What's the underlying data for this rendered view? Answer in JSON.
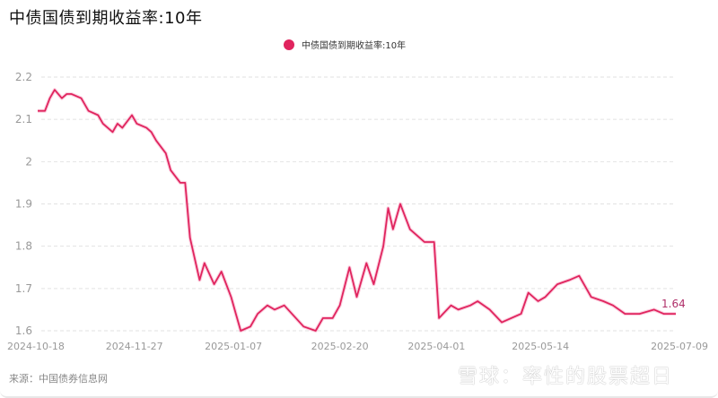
{
  "title": "中债国债到期收益率:10年",
  "legend": {
    "label": "中债国债到期收益率:10年",
    "color": "#e0245e"
  },
  "source": "来源：中国债券信息网",
  "watermark": "雪球：率性的股票超日",
  "last_value_label": "1.64",
  "chart_data": {
    "type": "line",
    "title": "中债国债到期收益率:10年",
    "xlabel": "",
    "ylabel": "",
    "ylim": [
      1.6,
      2.2
    ],
    "yticks": [
      "1.6",
      "1.7",
      "1.8",
      "1.9",
      "2",
      "2.1",
      "2.2"
    ],
    "xticks": [
      "2024-10-18",
      "2024-11-27",
      "2025-01-07",
      "2025-02-20",
      "2025-04-01",
      "2025-05-14",
      "2025-07-09"
    ],
    "grid": "horizontal dashed",
    "legend_position": "top-center",
    "series": [
      {
        "name": "中债国债到期收益率:10年",
        "color": "#e0245e",
        "x": [
          "2024-10-18",
          "2024-10-21",
          "2024-10-23",
          "2024-10-25",
          "2024-10-28",
          "2024-10-30",
          "2024-11-01",
          "2024-11-05",
          "2024-11-08",
          "2024-11-12",
          "2024-11-14",
          "2024-11-18",
          "2024-11-20",
          "2024-11-22",
          "2024-11-26",
          "2024-11-28",
          "2024-12-02",
          "2024-12-04",
          "2024-12-06",
          "2024-12-10",
          "2024-12-12",
          "2024-12-16",
          "2024-12-18",
          "2024-12-20",
          "2024-12-24",
          "2024-12-26",
          "2024-12-30",
          "2025-01-02",
          "2025-01-06",
          "2025-01-08",
          "2025-01-10",
          "2025-01-14",
          "2025-01-17",
          "2025-01-21",
          "2025-01-24",
          "2025-01-28",
          "2025-02-05",
          "2025-02-10",
          "2025-02-13",
          "2025-02-17",
          "2025-02-20",
          "2025-02-24",
          "2025-02-27",
          "2025-03-03",
          "2025-03-06",
          "2025-03-10",
          "2025-03-12",
          "2025-03-14",
          "2025-03-17",
          "2025-03-19",
          "2025-03-21",
          "2025-03-25",
          "2025-03-27",
          "2025-03-31",
          "2025-04-02",
          "2025-04-07",
          "2025-04-10",
          "2025-04-15",
          "2025-04-18",
          "2025-04-23",
          "2025-04-28",
          "2025-05-06",
          "2025-05-09",
          "2025-05-13",
          "2025-05-16",
          "2025-05-21",
          "2025-05-26",
          "2025-05-30",
          "2025-06-04",
          "2025-06-09",
          "2025-06-13",
          "2025-06-18",
          "2025-06-24",
          "2025-06-30",
          "2025-07-04",
          "2025-07-09"
        ],
        "values": [
          2.12,
          2.12,
          2.15,
          2.17,
          2.15,
          2.16,
          2.16,
          2.15,
          2.12,
          2.11,
          2.09,
          2.07,
          2.09,
          2.08,
          2.11,
          2.09,
          2.08,
          2.07,
          2.05,
          2.02,
          1.98,
          1.95,
          1.95,
          1.82,
          1.72,
          1.76,
          1.71,
          1.74,
          1.68,
          1.64,
          1.6,
          1.61,
          1.64,
          1.66,
          1.65,
          1.66,
          1.61,
          1.6,
          1.63,
          1.63,
          1.66,
          1.75,
          1.68,
          1.76,
          1.71,
          1.8,
          1.89,
          1.84,
          1.9,
          1.87,
          1.84,
          1.82,
          1.81,
          1.81,
          1.63,
          1.66,
          1.65,
          1.66,
          1.67,
          1.65,
          1.62,
          1.64,
          1.69,
          1.67,
          1.68,
          1.71,
          1.72,
          1.73,
          1.68,
          1.67,
          1.66,
          1.64,
          1.64,
          1.65,
          1.64,
          1.64
        ]
      }
    ]
  }
}
